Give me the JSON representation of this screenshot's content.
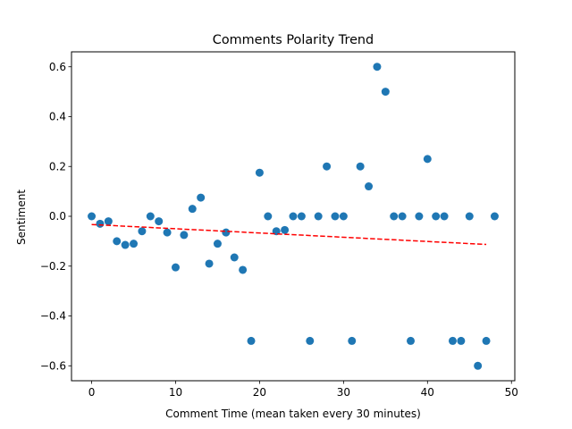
{
  "chart_data": {
    "type": "scatter",
    "title": "Comments Polarity Trend",
    "xlabel": "Comment Time (mean taken every 30 minutes)",
    "ylabel": "Sentiment",
    "xlim": [
      -2.4,
      50.4
    ],
    "ylim": [
      -0.66,
      0.66
    ],
    "xticks": [
      0,
      10,
      20,
      30,
      40,
      50
    ],
    "yticks": [
      -0.6,
      -0.4,
      -0.2,
      0.0,
      0.2,
      0.4,
      0.6
    ],
    "xtick_labels": [
      "0",
      "10",
      "20",
      "30",
      "40",
      "50"
    ],
    "ytick_labels": [
      "−0.6",
      "−0.4",
      "−0.2",
      "0.0",
      "0.2",
      "0.4",
      "0.6"
    ],
    "grid": false,
    "colors": {
      "points": "#1f77b4",
      "trend": "#ff0000",
      "axes": "#000000"
    },
    "series": [
      {
        "kind": "scatter",
        "x": [
          0,
          1,
          2,
          3,
          4,
          5,
          6,
          7,
          8,
          9,
          10,
          11,
          12,
          13,
          14,
          15,
          16,
          17,
          18,
          19,
          20,
          21,
          22,
          23,
          24,
          25,
          26,
          27,
          28,
          29,
          30,
          31,
          32,
          33,
          34,
          35,
          36,
          37,
          38,
          39,
          40,
          41,
          42,
          43,
          44,
          45,
          46,
          47,
          48
        ],
        "y": [
          0.0,
          -0.03,
          -0.02,
          -0.1,
          -0.115,
          -0.11,
          -0.06,
          0.0,
          -0.02,
          -0.065,
          -0.205,
          -0.075,
          0.03,
          0.075,
          -0.19,
          -0.11,
          -0.065,
          -0.165,
          -0.215,
          -0.5,
          0.175,
          0.0,
          -0.06,
          -0.055,
          0.0,
          0.0,
          -0.5,
          0.0,
          0.2,
          0.0,
          0.0,
          -0.5,
          0.2,
          0.12,
          0.6,
          0.5,
          0.0,
          0.0,
          -0.5,
          0.0,
          0.23,
          0.0,
          0.0,
          -0.5,
          -0.5,
          0.0,
          -0.6,
          -0.5,
          0.0
        ]
      },
      {
        "kind": "trend_line",
        "style": "dashed",
        "x": [
          0,
          47
        ],
        "y": [
          -0.033,
          -0.113
        ]
      }
    ]
  }
}
